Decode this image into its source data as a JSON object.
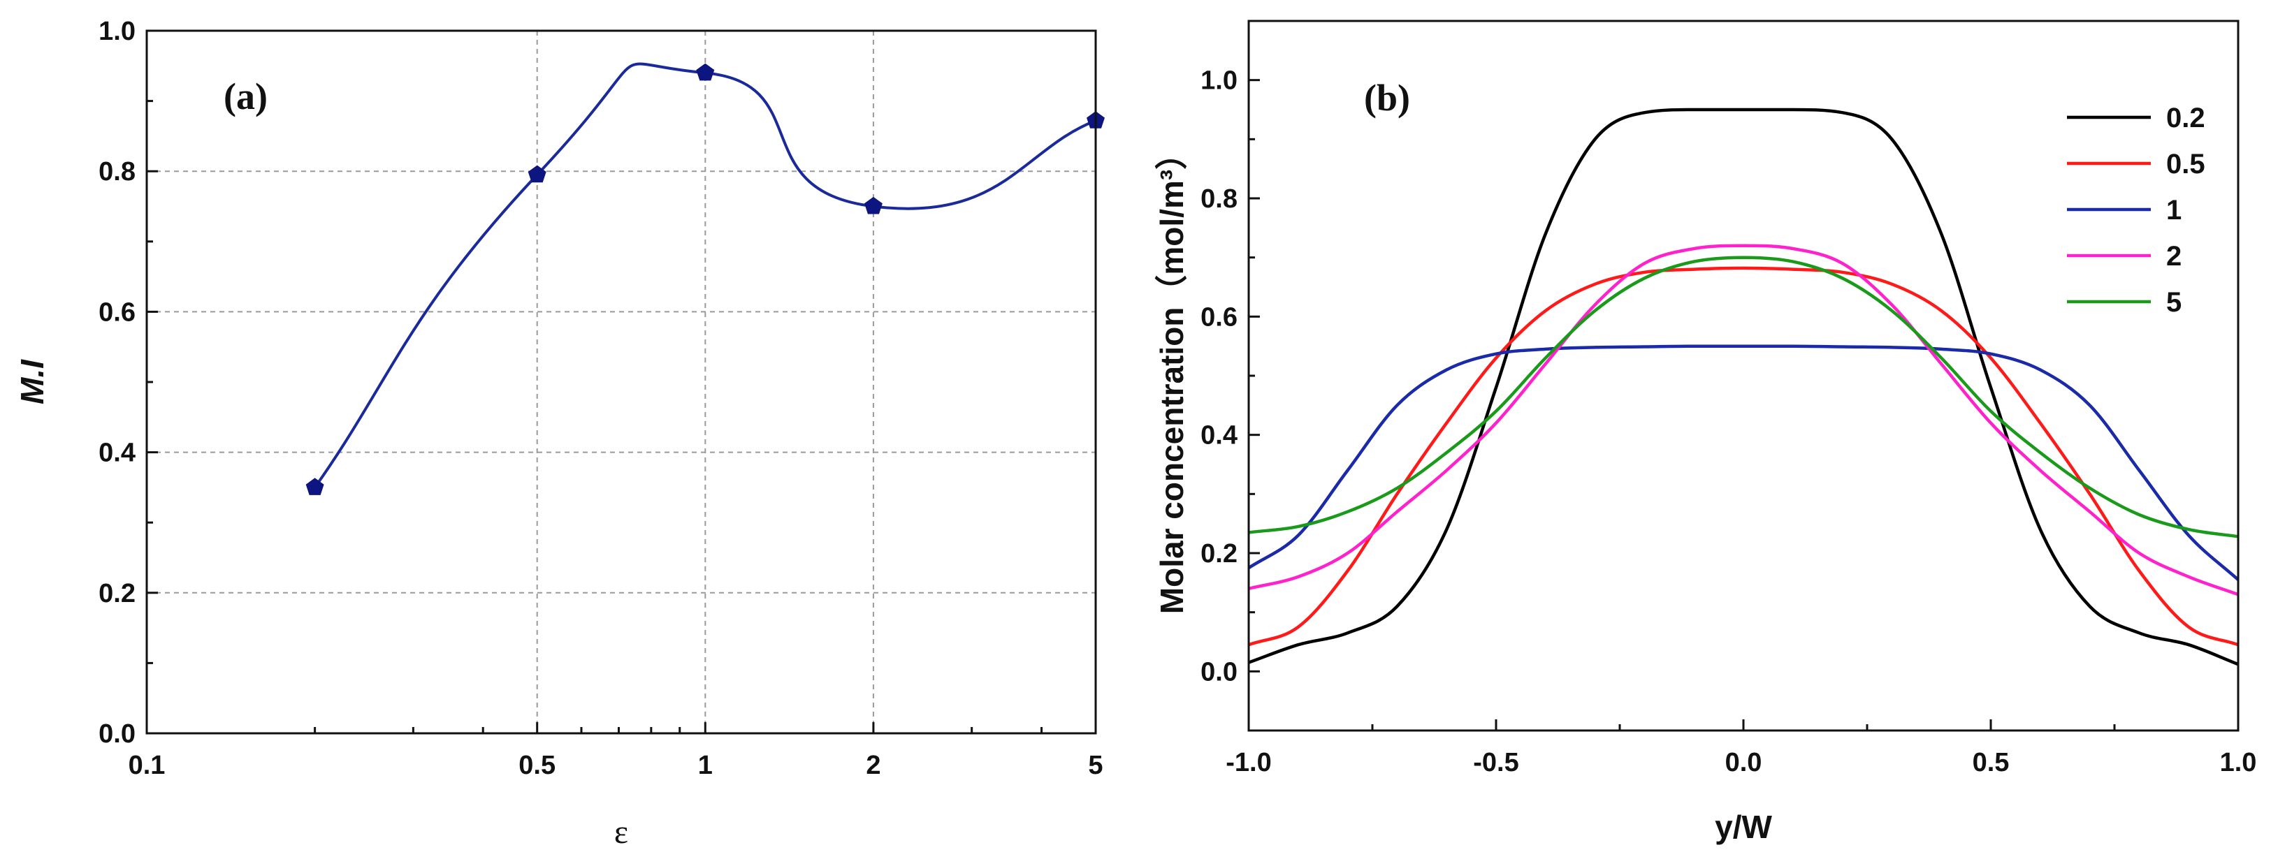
{
  "chart_data": [
    {
      "type": "line",
      "panel_label": "(a)",
      "xlabel": "ε",
      "ylabel": "M.I",
      "x_scale": "log",
      "xlim": [
        0.1,
        5
      ],
      "ylim": [
        0.0,
        1.0
      ],
      "xticks": [
        0.1,
        0.5,
        1,
        2,
        5
      ],
      "xtick_labels": [
        "0.1",
        "0.5",
        "1",
        "2",
        "5"
      ],
      "yticks": [
        0.0,
        0.2,
        0.4,
        0.6,
        0.8,
        1.0
      ],
      "ytick_labels": [
        "0.0",
        "0.2",
        "0.4",
        "0.6",
        "0.8",
        "1.0"
      ],
      "grid": true,
      "line_color": "#1a2a9a",
      "marker_color": "#0d1580",
      "marker": "pentagon",
      "series": [
        {
          "x": [
            0.2,
            0.5,
            1,
            2,
            5
          ],
          "y": [
            0.35,
            0.795,
            0.94,
            0.75,
            0.872
          ]
        }
      ]
    },
    {
      "type": "line",
      "panel_label": "(b)",
      "xlabel": "y/W",
      "ylabel": "Molar concentration（mol/m³）",
      "xlim": [
        -1.0,
        1.0
      ],
      "ylim": [
        -0.1,
        1.1
      ],
      "xticks": [
        -1.0,
        -0.5,
        0.0,
        0.5,
        1.0
      ],
      "xtick_labels": [
        "-1.0",
        "-0.5",
        "0.0",
        "0.5",
        "1.0"
      ],
      "yticks": [
        0.0,
        0.2,
        0.4,
        0.6,
        0.8,
        1.0
      ],
      "ytick_labels": [
        "0.0",
        "0.2",
        "0.4",
        "0.6",
        "0.8",
        "1.0"
      ],
      "grid": false,
      "legend_position": "top-right",
      "x": [
        -1.0,
        -0.9,
        -0.8,
        -0.7,
        -0.6,
        -0.5,
        -0.4,
        -0.3,
        -0.2,
        -0.1,
        0.0,
        0.1,
        0.2,
        0.3,
        0.4,
        0.5,
        0.6,
        0.7,
        0.8,
        0.9,
        1.0
      ],
      "series": [
        {
          "name": "0.2",
          "color": "#000000",
          "values": [
            0.015,
            0.045,
            0.065,
            0.11,
            0.24,
            0.48,
            0.74,
            0.9,
            0.945,
            0.95,
            0.95,
            0.95,
            0.945,
            0.9,
            0.74,
            0.48,
            0.24,
            0.11,
            0.065,
            0.045,
            0.012
          ]
        },
        {
          "name": "0.5",
          "color": "#ff1a1a",
          "values": [
            0.045,
            0.075,
            0.17,
            0.3,
            0.42,
            0.53,
            0.61,
            0.655,
            0.675,
            0.68,
            0.682,
            0.68,
            0.675,
            0.655,
            0.61,
            0.53,
            0.42,
            0.3,
            0.17,
            0.075,
            0.045
          ]
        },
        {
          "name": "1",
          "color": "#1a2aa8",
          "values": [
            0.175,
            0.23,
            0.34,
            0.45,
            0.51,
            0.537,
            0.545,
            0.548,
            0.549,
            0.55,
            0.55,
            0.55,
            0.549,
            0.548,
            0.545,
            0.537,
            0.51,
            0.45,
            0.34,
            0.23,
            0.155
          ]
        },
        {
          "name": "2",
          "color": "#ff22cc",
          "values": [
            0.14,
            0.16,
            0.2,
            0.27,
            0.34,
            0.42,
            0.52,
            0.62,
            0.69,
            0.715,
            0.72,
            0.715,
            0.69,
            0.62,
            0.52,
            0.42,
            0.34,
            0.27,
            0.2,
            0.16,
            0.13
          ]
        },
        {
          "name": "5",
          "color": "#1a9a1a",
          "values": [
            0.235,
            0.245,
            0.27,
            0.31,
            0.37,
            0.44,
            0.53,
            0.61,
            0.665,
            0.693,
            0.7,
            0.693,
            0.665,
            0.61,
            0.53,
            0.44,
            0.37,
            0.31,
            0.265,
            0.24,
            0.228
          ]
        }
      ]
    }
  ]
}
